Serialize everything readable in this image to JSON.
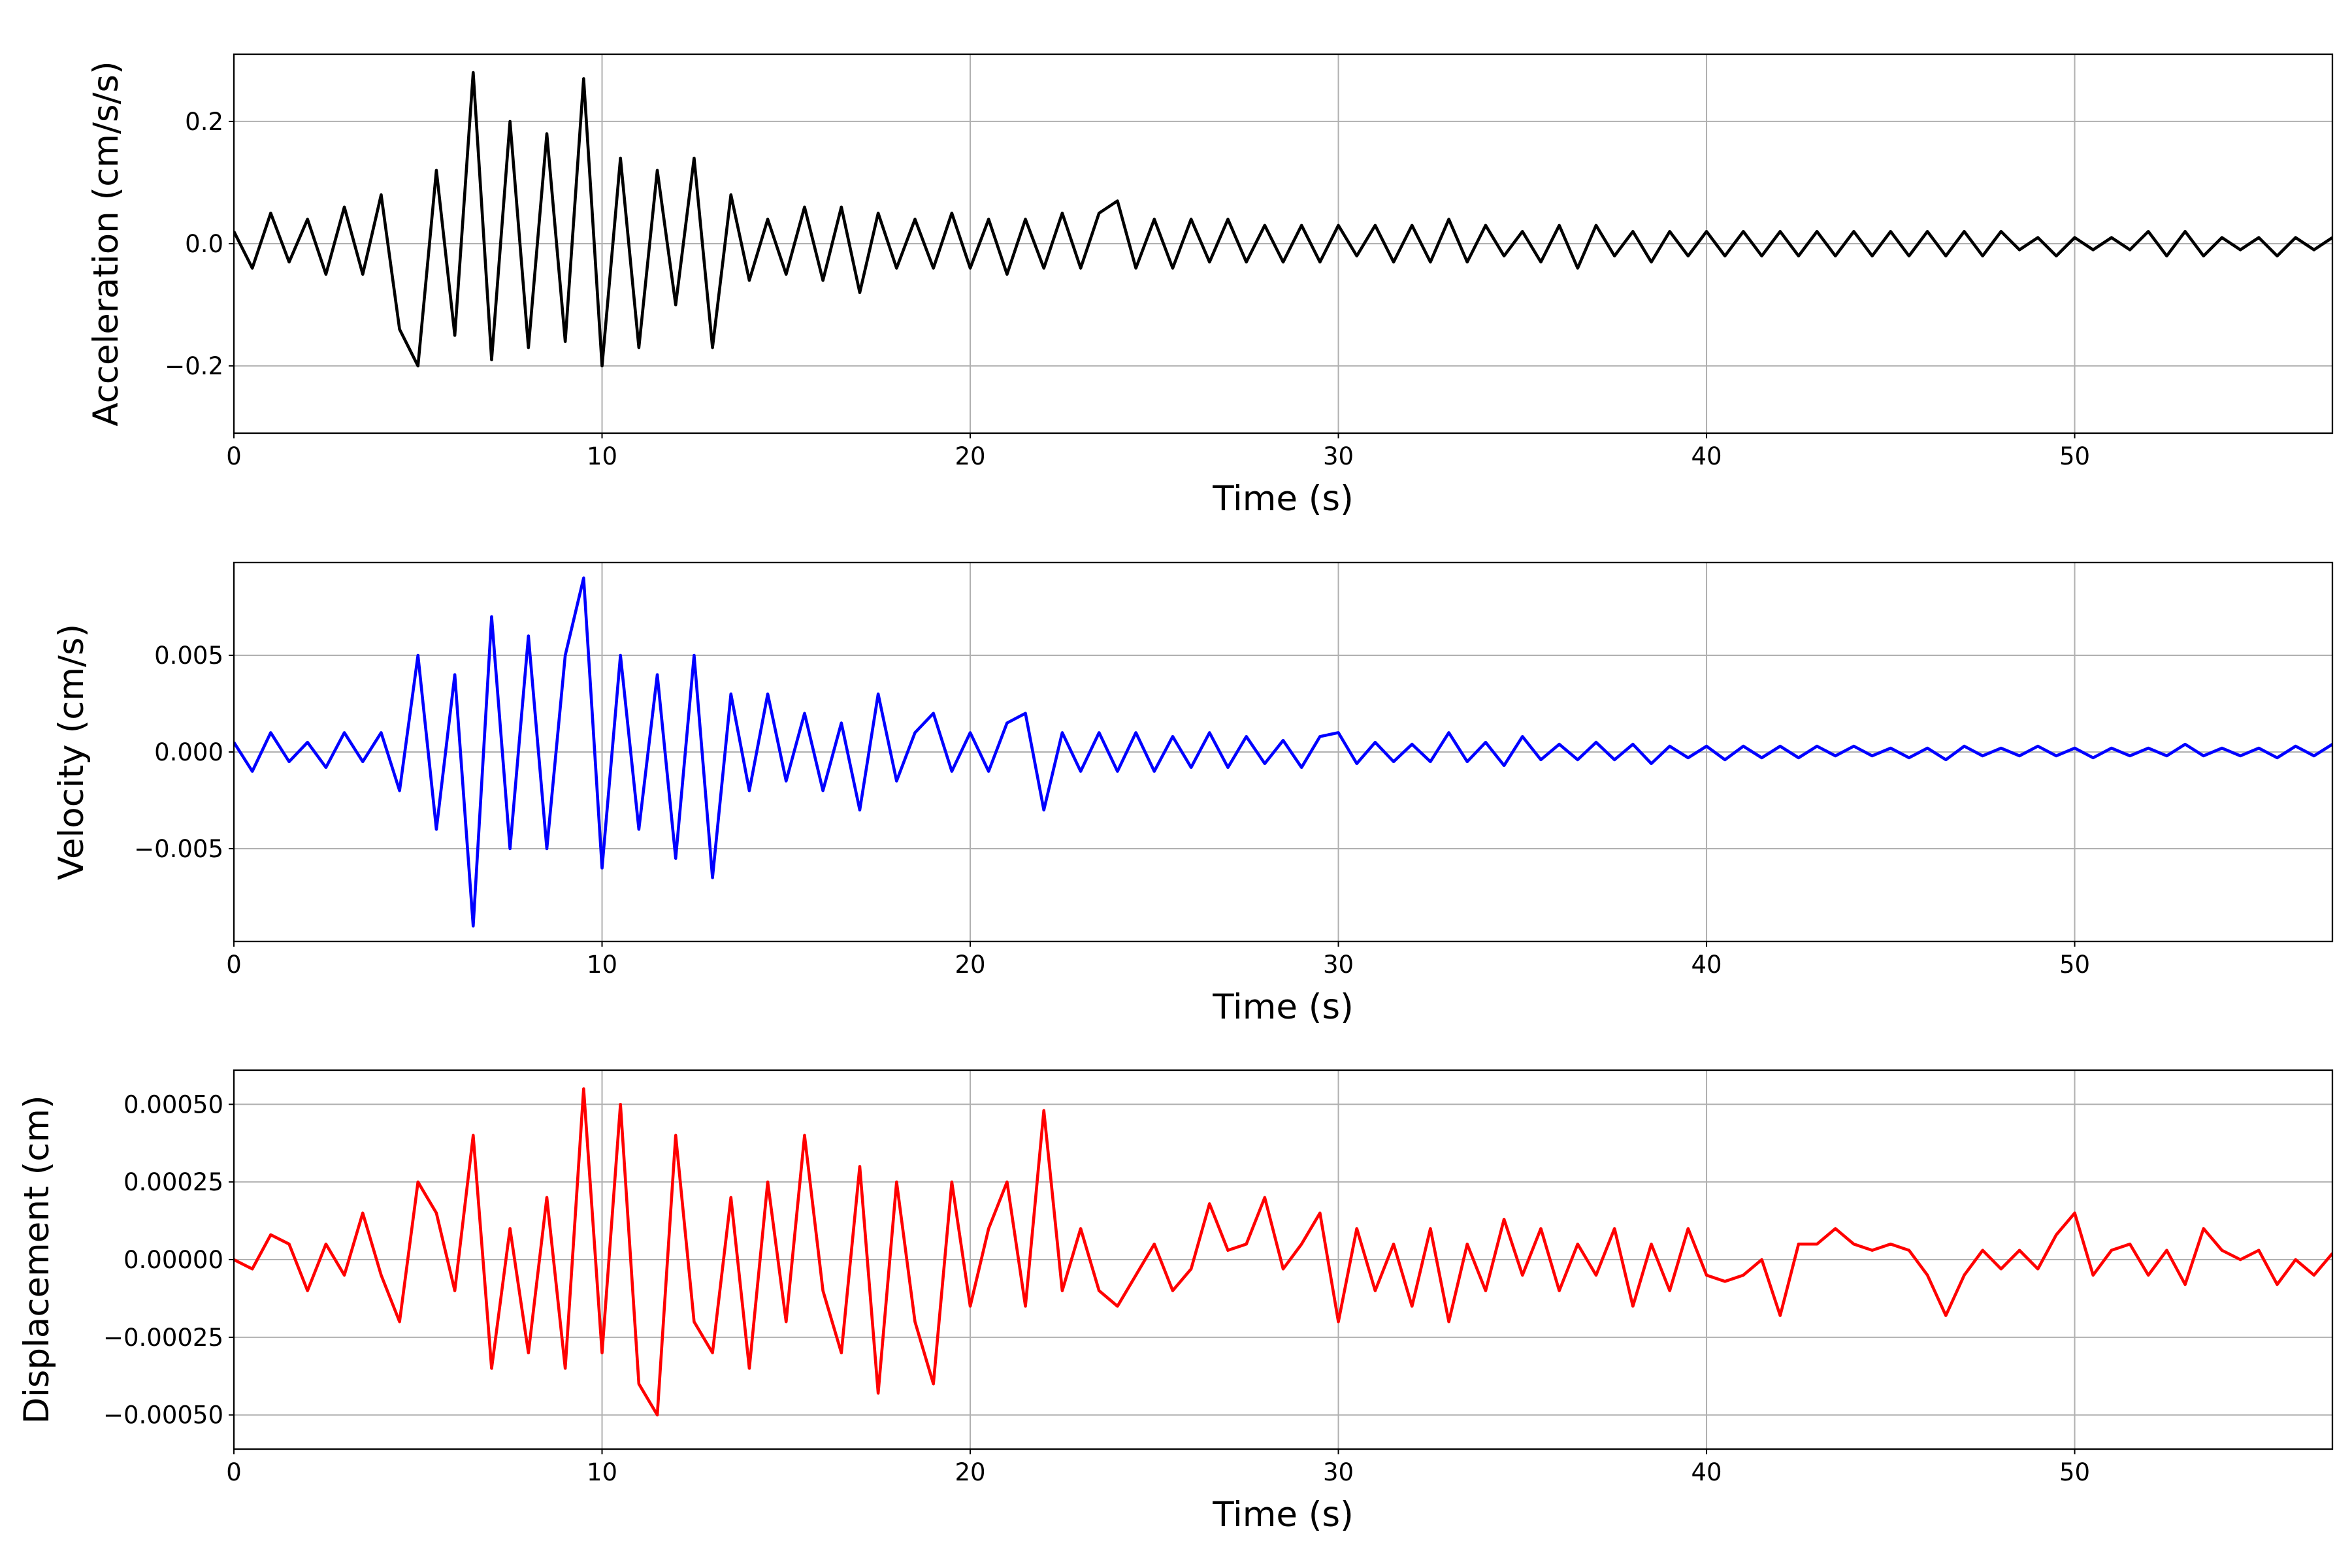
{
  "chart_data": [
    {
      "type": "line",
      "ylabel": "Acceleration (cm/s/s)",
      "xlabel": "Time (s)",
      "color": "#000000",
      "grid": true,
      "xlim": [
        0,
        57
      ],
      "xticks": [
        0,
        10,
        20,
        30,
        40,
        50
      ],
      "ylim": [
        -0.31,
        0.31
      ],
      "yticks": [
        {
          "value": -0.2,
          "label": "−0.2"
        },
        {
          "value": 0.0,
          "label": "0.0"
        },
        {
          "value": 0.2,
          "label": "0.2"
        }
      ],
      "x": [
        0,
        0.5,
        1,
        1.5,
        2,
        2.5,
        3,
        3.5,
        4,
        4.5,
        5,
        5.5,
        6,
        6.5,
        7,
        7.5,
        8,
        8.5,
        9,
        9.5,
        10,
        10.5,
        11,
        11.5,
        12,
        12.5,
        13,
        13.5,
        14,
        14.5,
        15,
        15.5,
        16,
        16.5,
        17,
        17.5,
        18,
        18.5,
        19,
        19.5,
        20,
        20.5,
        21,
        21.5,
        22,
        22.5,
        23,
        23.5,
        24,
        24.5,
        25,
        25.5,
        26,
        26.5,
        27,
        27.5,
        28,
        28.5,
        29,
        29.5,
        30,
        30.5,
        31,
        31.5,
        32,
        32.5,
        33,
        33.5,
        34,
        34.5,
        35,
        35.5,
        36,
        36.5,
        37,
        37.5,
        38,
        38.5,
        39,
        39.5,
        40,
        40.5,
        41,
        41.5,
        42,
        42.5,
        43,
        43.5,
        44,
        44.5,
        45,
        45.5,
        46,
        46.5,
        47,
        47.5,
        48,
        48.5,
        49,
        49.5,
        50,
        50.5,
        51,
        51.5,
        52,
        52.5,
        53,
        53.5,
        54,
        54.5,
        55,
        55.5,
        56,
        56.5,
        57
      ],
      "values": [
        0.02,
        -0.04,
        0.05,
        -0.03,
        0.04,
        -0.05,
        0.06,
        -0.05,
        0.08,
        -0.14,
        -0.2,
        0.12,
        -0.15,
        0.28,
        -0.19,
        0.2,
        -0.17,
        0.18,
        -0.16,
        0.27,
        -0.2,
        0.14,
        -0.17,
        0.12,
        -0.1,
        0.14,
        -0.17,
        0.08,
        -0.06,
        0.04,
        -0.05,
        0.06,
        -0.06,
        0.06,
        -0.08,
        0.05,
        -0.04,
        0.04,
        -0.04,
        0.05,
        -0.04,
        0.04,
        -0.05,
        0.04,
        -0.04,
        0.05,
        -0.04,
        0.05,
        0.07,
        -0.04,
        0.04,
        -0.04,
        0.04,
        -0.03,
        0.04,
        -0.03,
        0.03,
        -0.03,
        0.03,
        -0.03,
        0.03,
        -0.02,
        0.03,
        -0.03,
        0.03,
        -0.03,
        0.04,
        -0.03,
        0.03,
        -0.02,
        0.02,
        -0.03,
        0.03,
        -0.04,
        0.03,
        -0.02,
        0.02,
        -0.03,
        0.02,
        -0.02,
        0.02,
        -0.02,
        0.02,
        -0.02,
        0.02,
        -0.02,
        0.02,
        -0.02,
        0.02,
        -0.02,
        0.02,
        -0.02,
        0.02,
        -0.02,
        0.02,
        -0.02,
        0.02,
        -0.01,
        0.01,
        -0.02,
        0.01,
        -0.01,
        0.01,
        -0.01,
        0.02,
        -0.02,
        0.02,
        -0.02,
        0.01,
        -0.01,
        0.01,
        -0.02,
        0.01,
        -0.01,
        0.01
      ]
    },
    {
      "type": "line",
      "ylabel": "Velocity (cm/s)",
      "xlabel": "Time (s)",
      "color": "#0000ff",
      "grid": true,
      "xlim": [
        0,
        57
      ],
      "xticks": [
        0,
        10,
        20,
        30,
        40,
        50
      ],
      "ylim": [
        -0.0098,
        0.0098
      ],
      "yticks": [
        {
          "value": -0.005,
          "label": "−0.005"
        },
        {
          "value": 0.0,
          "label": "0.000"
        },
        {
          "value": 0.005,
          "label": "0.005"
        }
      ],
      "x": [
        0,
        0.5,
        1,
        1.5,
        2,
        2.5,
        3,
        3.5,
        4,
        4.5,
        5,
        5.5,
        6,
        6.5,
        7,
        7.5,
        8,
        8.5,
        9,
        9.5,
        10,
        10.5,
        11,
        11.5,
        12,
        12.5,
        13,
        13.5,
        14,
        14.5,
        15,
        15.5,
        16,
        16.5,
        17,
        17.5,
        18,
        18.5,
        19,
        19.5,
        20,
        20.5,
        21,
        21.5,
        22,
        22.5,
        23,
        23.5,
        24,
        24.5,
        25,
        25.5,
        26,
        26.5,
        27,
        27.5,
        28,
        28.5,
        29,
        29.5,
        30,
        30.5,
        31,
        31.5,
        32,
        32.5,
        33,
        33.5,
        34,
        34.5,
        35,
        35.5,
        36,
        36.5,
        37,
        37.5,
        38,
        38.5,
        39,
        39.5,
        40,
        40.5,
        41,
        41.5,
        42,
        42.5,
        43,
        43.5,
        44,
        44.5,
        45,
        45.5,
        46,
        46.5,
        47,
        47.5,
        48,
        48.5,
        49,
        49.5,
        50,
        50.5,
        51,
        51.5,
        52,
        52.5,
        53,
        53.5,
        54,
        54.5,
        55,
        55.5,
        56,
        56.5,
        57
      ],
      "values": [
        0.0005,
        -0.001,
        0.001,
        -0.0005,
        0.0005,
        -0.0008,
        0.001,
        -0.0005,
        0.001,
        -0.002,
        0.005,
        -0.004,
        0.004,
        -0.009,
        0.007,
        -0.005,
        0.006,
        -0.005,
        0.005,
        0.009,
        -0.006,
        0.005,
        -0.004,
        0.004,
        -0.0055,
        0.005,
        -0.0065,
        0.003,
        -0.002,
        0.003,
        -0.0015,
        0.002,
        -0.002,
        0.0015,
        -0.003,
        0.003,
        -0.0015,
        0.001,
        0.002,
        -0.001,
        0.001,
        -0.001,
        0.0015,
        0.002,
        -0.003,
        0.001,
        -0.001,
        0.001,
        -0.001,
        0.001,
        -0.001,
        0.0008,
        -0.0008,
        0.001,
        -0.0008,
        0.0008,
        -0.0006,
        0.0006,
        -0.0008,
        0.0008,
        0.001,
        -0.0006,
        0.0005,
        -0.0005,
        0.0004,
        -0.0005,
        0.001,
        -0.0005,
        0.0005,
        -0.0007,
        0.0008,
        -0.0004,
        0.0004,
        -0.0004,
        0.0005,
        -0.0004,
        0.0004,
        -0.0006,
        0.0003,
        -0.0003,
        0.0003,
        -0.0004,
        0.0003,
        -0.0003,
        0.0003,
        -0.0003,
        0.0003,
        -0.0002,
        0.0003,
        -0.0002,
        0.0002,
        -0.0003,
        0.0002,
        -0.0004,
        0.0003,
        -0.0002,
        0.0002,
        -0.0002,
        0.0003,
        -0.0002,
        0.0002,
        -0.0003,
        0.0002,
        -0.0002,
        0.0002,
        -0.0002,
        0.0004,
        -0.0002,
        0.0002,
        -0.0002,
        0.0002,
        -0.0003,
        0.0003,
        -0.0002,
        0.0004
      ]
    },
    {
      "type": "line",
      "ylabel": "Displacement (cm)",
      "xlabel": "Time (s)",
      "color": "#ff0000",
      "grid": true,
      "xlim": [
        0,
        57
      ],
      "xticks": [
        0,
        10,
        20,
        30,
        40,
        50
      ],
      "ylim": [
        -0.00061,
        0.00061
      ],
      "yticks": [
        {
          "value": -0.0005,
          "label": "−0.00050"
        },
        {
          "value": -0.00025,
          "label": "−0.00025"
        },
        {
          "value": 0.0,
          "label": "0.00000"
        },
        {
          "value": 0.00025,
          "label": "0.00025"
        },
        {
          "value": 0.0005,
          "label": "0.00050"
        }
      ],
      "x": [
        0,
        0.5,
        1,
        1.5,
        2,
        2.5,
        3,
        3.5,
        4,
        4.5,
        5,
        5.5,
        6,
        6.5,
        7,
        7.5,
        8,
        8.5,
        9,
        9.5,
        10,
        10.5,
        11,
        11.5,
        12,
        12.5,
        13,
        13.5,
        14,
        14.5,
        15,
        15.5,
        16,
        16.5,
        17,
        17.5,
        18,
        18.5,
        19,
        19.5,
        20,
        20.5,
        21,
        21.5,
        22,
        22.5,
        23,
        23.5,
        24,
        24.5,
        25,
        25.5,
        26,
        26.5,
        27,
        27.5,
        28,
        28.5,
        29,
        29.5,
        30,
        30.5,
        31,
        31.5,
        32,
        32.5,
        33,
        33.5,
        34,
        34.5,
        35,
        35.5,
        36,
        36.5,
        37,
        37.5,
        38,
        38.5,
        39,
        39.5,
        40,
        40.5,
        41,
        41.5,
        42,
        42.5,
        43,
        43.5,
        44,
        44.5,
        45,
        45.5,
        46,
        46.5,
        47,
        47.5,
        48,
        48.5,
        49,
        49.5,
        50,
        50.5,
        51,
        51.5,
        52,
        52.5,
        53,
        53.5,
        54,
        54.5,
        55,
        55.5,
        56,
        56.5,
        57
      ],
      "values": [
        0,
        -3e-05,
        8e-05,
        5e-05,
        -0.0001,
        5e-05,
        -5e-05,
        0.00015,
        -5e-05,
        -0.0002,
        0.00025,
        0.00015,
        -0.0001,
        0.0004,
        -0.00035,
        0.0001,
        -0.0003,
        0.0002,
        -0.00035,
        0.00055,
        -0.0003,
        0.0005,
        -0.0004,
        -0.0005,
        0.0004,
        -0.0002,
        -0.0003,
        0.0002,
        -0.00035,
        0.00025,
        -0.0002,
        0.0004,
        -0.0001,
        -0.0003,
        0.0003,
        -0.00043,
        0.00025,
        -0.0002,
        -0.0004,
        0.00025,
        -0.00015,
        0.0001,
        0.00025,
        -0.00015,
        0.00048,
        -0.0001,
        0.0001,
        -0.0001,
        -0.00015,
        -5e-05,
        5e-05,
        -0.0001,
        -3e-05,
        0.00018,
        3e-05,
        5e-05,
        0.0002,
        -3e-05,
        5e-05,
        0.00015,
        -0.0002,
        0.0001,
        -0.0001,
        5e-05,
        -0.00015,
        0.0001,
        -0.0002,
        5e-05,
        -0.0001,
        0.00013,
        -5e-05,
        0.0001,
        -0.0001,
        5e-05,
        -5e-05,
        0.0001,
        -0.00015,
        5e-05,
        -0.0001,
        0.0001,
        -5e-05,
        -7e-05,
        -5e-05,
        0,
        -0.00018,
        5e-05,
        5e-05,
        0.0001,
        5e-05,
        3e-05,
        5e-05,
        3e-05,
        -5e-05,
        -0.00018,
        -5e-05,
        3e-05,
        -3e-05,
        3e-05,
        -3e-05,
        8e-05,
        0.00015,
        -5e-05,
        3e-05,
        5e-05,
        -5e-05,
        3e-05,
        -8e-05,
        0.0001,
        3e-05,
        0,
        3e-05,
        -8e-05,
        0,
        -5e-05,
        2e-05
      ]
    }
  ]
}
